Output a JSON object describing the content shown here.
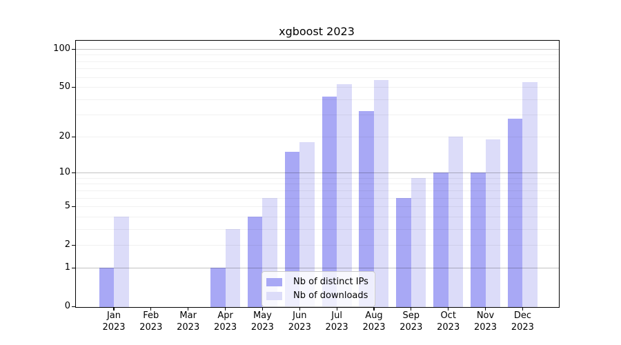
{
  "title": "xgboost 2023",
  "legend": {
    "items": [
      {
        "label": "Nb of distinct IPs",
        "color": "#a8a8f5"
      },
      {
        "label": "Nb of downloads",
        "color": "#dcdcf9"
      }
    ]
  },
  "axes": {
    "y_tick_labels": [
      "0",
      "1",
      "2",
      "5",
      "10",
      "20",
      "50",
      "100"
    ],
    "x_tick_labels": [
      "Jan 2023",
      "Feb 2023",
      "Mar 2023",
      "Apr 2023",
      "May 2023",
      "Jun 2023",
      "Jul 2023",
      "Aug 2023",
      "Sep 2023",
      "Oct 2023",
      "Nov 2023",
      "Dec 2023"
    ]
  },
  "colors": {
    "distinct_ips_bar": "#a8a8f5",
    "downloads_bar": "#dcdcf9",
    "major_gridline": "#c2c2c2",
    "minor_gridline": "#ededed",
    "spine": "#000000"
  },
  "chart_data": {
    "type": "bar",
    "title": "xgboost 2023",
    "categories": [
      "Jan 2023",
      "Feb 2023",
      "Mar 2023",
      "Apr 2023",
      "May 2023",
      "Jun 2023",
      "Jul 2023",
      "Aug 2023",
      "Sep 2023",
      "Oct 2023",
      "Nov 2023",
      "Dec 2023"
    ],
    "series": [
      {
        "name": "Nb of distinct IPs",
        "color": "#a8a8f5",
        "values": [
          1,
          0,
          0,
          1,
          4,
          15,
          42,
          32,
          6,
          10,
          10,
          28
        ]
      },
      {
        "name": "Nb of downloads",
        "color": "#dcdcf9",
        "values": [
          4,
          0,
          0,
          3,
          6,
          18,
          53,
          57,
          9,
          20,
          19,
          55
        ]
      }
    ],
    "xlabel": "",
    "ylabel": "",
    "yscale": "log10(1+y)",
    "yticks": [
      0,
      1,
      2,
      5,
      10,
      20,
      50,
      100
    ],
    "ylim": [
      0,
      113
    ],
    "grid": true,
    "legend_position": "lower center"
  }
}
